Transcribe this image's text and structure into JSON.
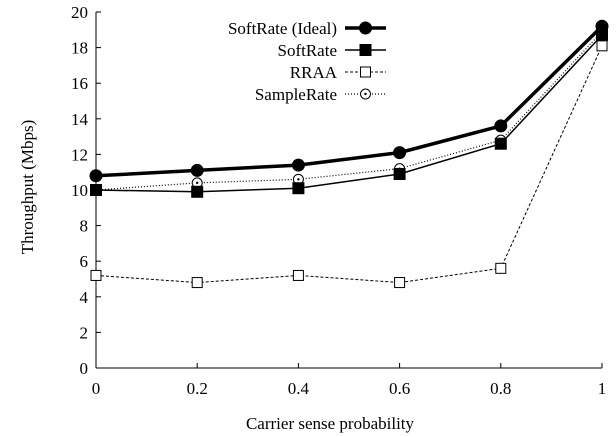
{
  "chart_data": {
    "type": "line",
    "xlabel": "Carrier sense probability",
    "ylabel": "Throughput (Mbps)",
    "xlim": [
      0,
      1
    ],
    "ylim": [
      0,
      20
    ],
    "x_ticks": [
      0,
      0.2,
      0.4,
      0.6,
      0.8,
      1
    ],
    "x_tick_labels": [
      "0",
      "0.2",
      "0.4",
      "0.6",
      "0.8",
      "1"
    ],
    "y_ticks": [
      0,
      2,
      4,
      6,
      8,
      10,
      12,
      14,
      16,
      18,
      20
    ],
    "y_tick_labels": [
      "0",
      "2",
      "4",
      "6",
      "8",
      "10",
      "12",
      "14",
      "16",
      "18",
      "20"
    ],
    "grid": false,
    "legend_position": "top-left",
    "series": [
      {
        "name": "SoftRate (Ideal)",
        "x": [
          0,
          0.2,
          0.4,
          0.6,
          0.8,
          1
        ],
        "y": [
          10.8,
          11.1,
          11.4,
          12.1,
          13.6,
          19.2
        ],
        "marker": "filled-circle",
        "line": "solid-thick",
        "color": "#000000"
      },
      {
        "name": "SoftRate",
        "x": [
          0,
          0.2,
          0.4,
          0.6,
          0.8,
          1
        ],
        "y": [
          10.0,
          9.9,
          10.1,
          10.9,
          12.6,
          18.7
        ],
        "marker": "filled-square",
        "line": "solid",
        "color": "#000000"
      },
      {
        "name": "RRAA",
        "x": [
          0,
          0.2,
          0.4,
          0.6,
          0.8,
          1
        ],
        "y": [
          5.2,
          4.8,
          5.2,
          4.8,
          5.6,
          18.1
        ],
        "marker": "open-square",
        "line": "dashed",
        "color": "#000000"
      },
      {
        "name": "SampleRate",
        "x": [
          0,
          0.2,
          0.4,
          0.6,
          0.8,
          1
        ],
        "y": [
          10.0,
          10.4,
          10.6,
          11.2,
          12.8,
          18.9
        ],
        "marker": "open-circle",
        "line": "dotted",
        "color": "#000000"
      }
    ]
  }
}
